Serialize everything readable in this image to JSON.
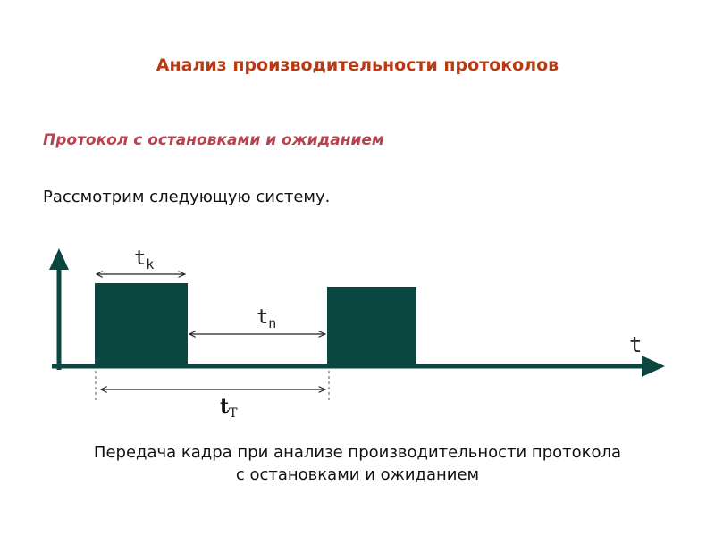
{
  "page": {
    "title": "Анализ производительности протоколов",
    "subtitle": "Протокол с остановками и ожиданием",
    "intro": "Рассмотрим следующую систему.",
    "caption": "Передача кадра при анализе производительности протокола с остановками и ожиданием"
  },
  "diagram": {
    "label_tk_main": "t",
    "label_tk_sub": "k",
    "label_tn_main": "t",
    "label_tn_sub": "n",
    "label_tT_main": "t",
    "label_tT_sub": "T",
    "axis_label": "t"
  },
  "colors": {
    "title": "#b83a14",
    "subtitle": "#b8414f",
    "frame": "#0b4740"
  }
}
